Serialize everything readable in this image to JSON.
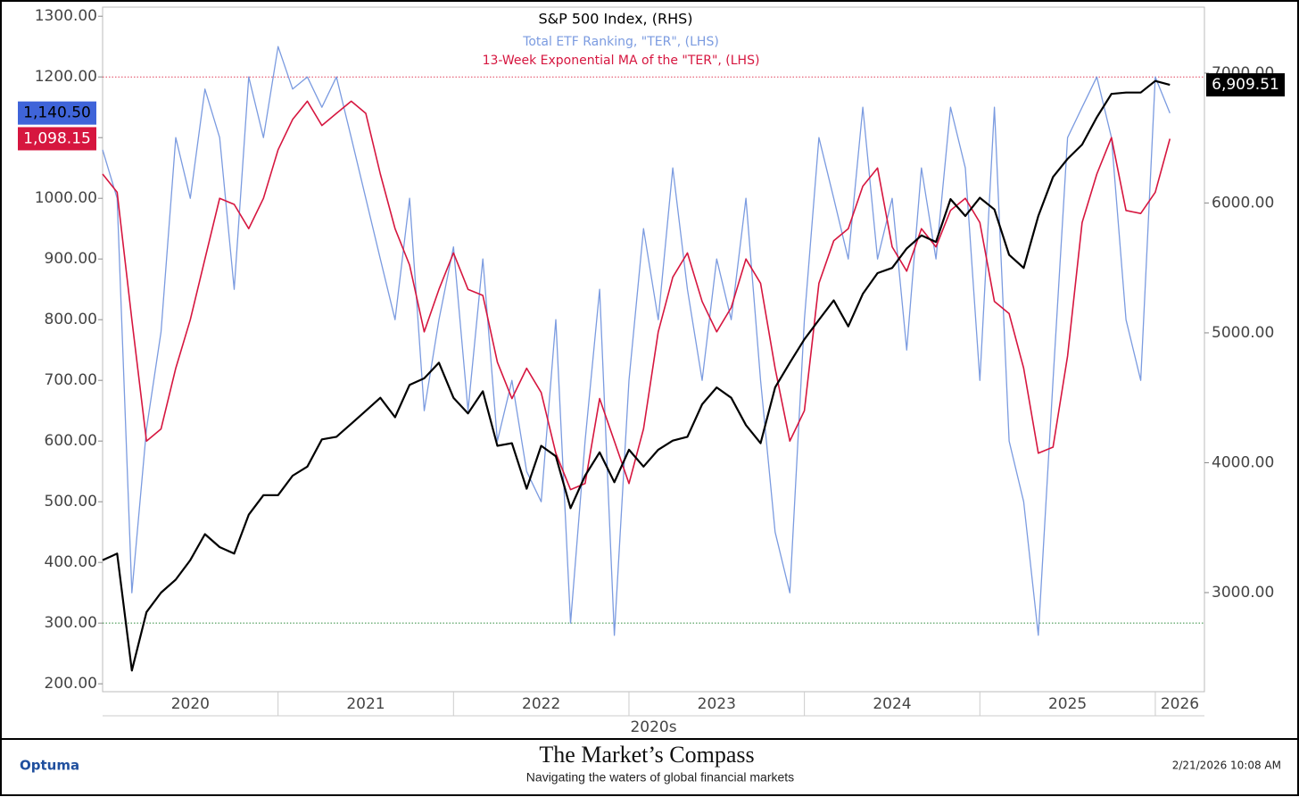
{
  "chart_data": {
    "type": "line",
    "legend_title": "S&P 500 Index, (RHS)",
    "x": [
      2020.0,
      2020.083,
      2020.167,
      2020.25,
      2020.333,
      2020.417,
      2020.5,
      2020.583,
      2020.667,
      2020.75,
      2020.833,
      2020.917,
      2021.0,
      2021.083,
      2021.167,
      2021.25,
      2021.333,
      2021.417,
      2021.5,
      2021.583,
      2021.667,
      2021.75,
      2021.833,
      2021.917,
      2022.0,
      2022.083,
      2022.167,
      2022.25,
      2022.333,
      2022.417,
      2022.5,
      2022.583,
      2022.667,
      2022.75,
      2022.833,
      2022.917,
      2023.0,
      2023.083,
      2023.167,
      2023.25,
      2023.333,
      2023.417,
      2023.5,
      2023.583,
      2023.667,
      2023.75,
      2023.833,
      2023.917,
      2024.0,
      2024.083,
      2024.167,
      2024.25,
      2024.333,
      2024.417,
      2024.5,
      2024.583,
      2024.667,
      2024.75,
      2024.833,
      2024.917,
      2025.0,
      2025.083,
      2025.167,
      2025.25,
      2025.333,
      2025.417,
      2025.5,
      2025.583,
      2025.667,
      2025.75,
      2025.833,
      2025.917,
      2026.0,
      2026.083
    ],
    "series": [
      {
        "name": "Total ETF Ranking, \"TER\", (LHS)",
        "color": "#7b9be0",
        "width": 1.3,
        "label_fill": "#3f64d9",
        "label_text": "#000000",
        "last_label": "1,140.50",
        "values": [
          1080,
          1000,
          350,
          620,
          780,
          1100,
          1000,
          1180,
          1100,
          850,
          1200,
          1100,
          1250,
          1180,
          1200,
          1150,
          1200,
          1100,
          1000,
          900,
          800,
          1000,
          650,
          800,
          920,
          650,
          900,
          600,
          700,
          550,
          500,
          800,
          300,
          600,
          850,
          280,
          700,
          950,
          800,
          1050,
          850,
          700,
          900,
          800,
          1000,
          700,
          450,
          350,
          800,
          1100,
          1000,
          900,
          1150,
          900,
          1000,
          750,
          1050,
          900,
          1150,
          1050,
          700,
          1150,
          600,
          500,
          280,
          700,
          1100,
          1150,
          1200,
          1100,
          800,
          700,
          1200,
          1140.5
        ]
      },
      {
        "name": "13-Week Exponential MA of the \"TER\", (LHS)",
        "color": "#d6163f",
        "width": 1.6,
        "label_fill": "#d6163f",
        "label_text": "#ffffff",
        "last_label": "1,098.15",
        "values": [
          1040,
          1010,
          800,
          600,
          620,
          720,
          800,
          900,
          1000,
          990,
          950,
          1000,
          1080,
          1130,
          1160,
          1120,
          1140,
          1160,
          1140,
          1040,
          950,
          890,
          780,
          850,
          910,
          850,
          840,
          730,
          670,
          720,
          680,
          580,
          520,
          530,
          670,
          600,
          530,
          620,
          780,
          870,
          910,
          830,
          780,
          820,
          900,
          860,
          720,
          600,
          650,
          860,
          930,
          950,
          1020,
          1050,
          920,
          880,
          950,
          920,
          980,
          1000,
          960,
          830,
          810,
          720,
          580,
          590,
          740,
          960,
          1040,
          1100,
          980,
          975,
          1010,
          1098.15
        ]
      },
      {
        "name": "S&P 500 Index",
        "axis": "y2",
        "color": "#000000",
        "width": 2.2,
        "label_fill": "#000000",
        "label_text": "#ffffff",
        "last_label": "6,909.51",
        "values": [
          3250,
          3300,
          2400,
          2850,
          3000,
          3100,
          3250,
          3450,
          3350,
          3300,
          3600,
          3750,
          3750,
          3900,
          3970,
          4180,
          4200,
          4300,
          4400,
          4500,
          4350,
          4600,
          4650,
          4770,
          4500,
          4380,
          4550,
          4130,
          4150,
          3800,
          4130,
          4050,
          3650,
          3900,
          4080,
          3850,
          4100,
          3970,
          4100,
          4170,
          4200,
          4450,
          4580,
          4500,
          4290,
          4150,
          4580,
          4770,
          4950,
          5100,
          5250,
          5050,
          5300,
          5460,
          5500,
          5650,
          5750,
          5700,
          6030,
          5900,
          6040,
          5950,
          5600,
          5500,
          5900,
          6200,
          6340,
          6450,
          6660,
          6840,
          6850,
          6850,
          6940,
          6909.51
        ]
      }
    ],
    "legend_series": [
      2,
      0,
      1
    ],
    "xlim": [
      2020,
      2026.28
    ],
    "xticks": [
      2020,
      2021,
      2022,
      2023,
      2024,
      2025,
      2026
    ],
    "x_group_label": "2020s",
    "ylim": [
      187,
      1315
    ],
    "yticks": [
      {
        "value": 200,
        "label": "200.00"
      },
      {
        "value": 300,
        "label": "300.00"
      },
      {
        "value": 400,
        "label": "400.00"
      },
      {
        "value": 500,
        "label": "500.00"
      },
      {
        "value": 600,
        "label": "600.00"
      },
      {
        "value": 700,
        "label": "700.00"
      },
      {
        "value": 800,
        "label": "800.00"
      },
      {
        "value": 900,
        "label": "900.00"
      },
      {
        "value": 1000,
        "label": "1000.00"
      },
      {
        "value": 1100,
        "label": "1100.00"
      },
      {
        "value": 1200,
        "label": "1200.00"
      },
      {
        "value": 1300,
        "label": "1300.00"
      }
    ],
    "y2lim": [
      2237,
      7508
    ],
    "y2ticks": [
      {
        "value": 3000,
        "label": "3000.00"
      },
      {
        "value": 4000,
        "label": "4000.00"
      },
      {
        "value": 5000,
        "label": "5000.00"
      },
      {
        "value": 6000,
        "label": "6000.00"
      },
      {
        "value": 7000,
        "label": "7000.00"
      }
    ],
    "reference_lines": [
      {
        "value": 1200,
        "color": "#e0405a"
      },
      {
        "value": 300,
        "color": "#2e8b3e"
      }
    ]
  },
  "footer": {
    "brand": "Optuma",
    "title": "The Market’s Compass",
    "subtitle": "Navigating the waters of global financial markets",
    "timestamp": "2/21/2026 10:08 AM"
  }
}
